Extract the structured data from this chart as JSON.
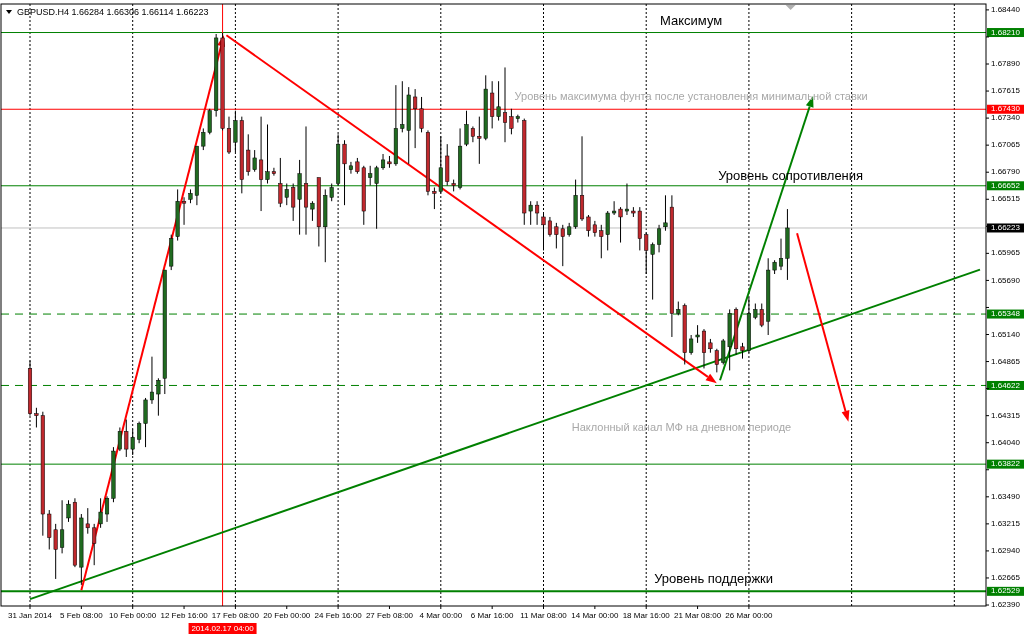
{
  "chart_data": {
    "type": "candlestick",
    "title": "GBPUSD.H4 1.66284 1.66306 1.66114 1.66223",
    "categories": [
      "31 Jan 2014",
      null,
      null,
      null,
      null,
      null,
      null,
      null,
      "5 Feb 08:00",
      null,
      null,
      null,
      null,
      null,
      null,
      null,
      "10 Feb 00:00",
      null,
      null,
      null,
      null,
      null,
      null,
      null,
      "12 Feb 16:00",
      null,
      null,
      null,
      null,
      null,
      null,
      null,
      "17 Feb 08:00",
      null,
      null,
      null,
      null,
      null,
      null,
      null,
      "20 Feb 00:00",
      null,
      null,
      null,
      null,
      null,
      null,
      null,
      "24 Feb 16:00",
      null,
      null,
      null,
      null,
      null,
      null,
      null,
      "27 Feb 08:00",
      null,
      null,
      null,
      null,
      null,
      null,
      null,
      "4 Mar 00:00",
      null,
      null,
      null,
      null,
      null,
      null,
      null,
      "6 Mar 16:00",
      null,
      null,
      null,
      null,
      null,
      null,
      null,
      "11 Mar 08:00",
      null,
      null,
      null,
      null,
      null,
      null,
      null,
      "14 Mar 00:00",
      null,
      null,
      null,
      null,
      null,
      null,
      null,
      "18 Mar 16:00",
      null,
      null,
      null,
      null,
      null,
      null,
      null,
      "21 Mar 08:00",
      null,
      null,
      null,
      null,
      null,
      null,
      null,
      "26 Mar 00:00",
      null,
      null,
      null,
      null,
      null,
      null,
      null,
      null,
      null,
      null,
      null,
      null,
      null,
      null,
      null,
      null,
      null,
      null,
      null,
      null,
      null,
      null,
      null,
      null,
      null,
      null,
      null,
      null,
      null,
      null,
      null,
      null,
      null,
      null,
      null,
      null
    ],
    "ohlc": [
      [
        1.64795,
        1.64875,
        1.64315,
        1.64335
      ],
      [
        1.64335,
        1.64395,
        1.64195,
        1.64315
      ],
      [
        1.64315,
        1.64355,
        1.63095,
        1.63315
      ],
      [
        1.63315,
        1.63355,
        1.62955,
        1.63075
      ],
      [
        1.63155,
        1.63215,
        1.62655,
        1.62955
      ],
      [
        1.62975,
        1.63455,
        1.62915,
        1.63155
      ],
      [
        1.63275,
        1.63455,
        1.63235,
        1.63415
      ],
      [
        1.63435,
        1.63475,
        1.62775,
        1.62795
      ],
      [
        1.62775,
        1.63315,
        1.62595,
        1.63275
      ],
      [
        1.63215,
        1.63375,
        1.63115,
        1.63175
      ],
      [
        1.63175,
        1.63215,
        1.62795,
        1.63015
      ],
      [
        1.63215,
        1.63475,
        1.63175,
        1.63335
      ],
      [
        1.63315,
        1.63495,
        1.63235,
        1.63475
      ],
      [
        1.63475,
        1.63995,
        1.63435,
        1.63955
      ],
      [
        1.63975,
        1.64195,
        1.63955,
        1.64155
      ],
      [
        1.64155,
        1.64275,
        1.63895,
        1.63975
      ],
      [
        1.63975,
        1.64175,
        1.63915,
        1.64095
      ],
      [
        1.64075,
        1.64255,
        1.64035,
        1.64235
      ],
      [
        1.64235,
        1.64495,
        1.63995,
        1.64475
      ],
      [
        1.64475,
        1.64915,
        1.64435,
        1.64555
      ],
      [
        1.64535,
        1.64695,
        1.64315,
        1.64675
      ],
      [
        1.64695,
        1.65795,
        1.64535,
        1.65795
      ],
      [
        1.65835,
        1.66155,
        1.65795,
        1.66115
      ],
      [
        1.66135,
        1.66615,
        1.66095,
        1.66495
      ],
      [
        1.66495,
        1.66535,
        1.66255,
        1.66475
      ],
      [
        1.66515,
        1.66615,
        1.66475,
        1.66575
      ],
      [
        1.66555,
        1.67055,
        1.66455,
        1.67055
      ],
      [
        1.67055,
        1.67235,
        1.67015,
        1.67195
      ],
      [
        1.67195,
        1.67435,
        1.67175,
        1.67415
      ],
      [
        1.67415,
        1.68195,
        1.67355,
        1.68155
      ],
      [
        1.68155,
        1.68205,
        1.67215,
        1.67235
      ],
      [
        1.67235,
        1.67355,
        1.66975,
        1.66995
      ],
      [
        1.67095,
        1.67415,
        1.66995,
        1.67315
      ],
      [
        1.67315,
        1.67355,
        1.66575,
        1.66715
      ],
      [
        1.67015,
        1.67175,
        1.66755,
        1.66795
      ],
      [
        1.66815,
        1.67015,
        1.66795,
        1.66935
      ],
      [
        1.66915,
        1.67355,
        1.66395,
        1.66715
      ],
      [
        1.66715,
        1.67275,
        1.66675,
        1.66795
      ],
      [
        1.66795,
        1.66835,
        1.66755,
        1.66775
      ],
      [
        1.66675,
        1.66935,
        1.66435,
        1.66475
      ],
      [
        1.66535,
        1.66675,
        1.66455,
        1.66615
      ],
      [
        1.66635,
        1.66675,
        1.66295,
        1.66435
      ],
      [
        1.66515,
        1.66915,
        1.66155,
        1.66775
      ],
      [
        1.66675,
        1.67255,
        1.66155,
        1.66435
      ],
      [
        1.66415,
        1.66495,
        1.66295,
        1.66475
      ],
      [
        1.66735,
        1.66735,
        1.66035,
        1.66235
      ],
      [
        1.66235,
        1.66615,
        1.65875,
        1.66555
      ],
      [
        1.66535,
        1.66675,
        1.66495,
        1.66635
      ],
      [
        1.66675,
        1.67175,
        1.66655,
        1.67075
      ],
      [
        1.67075,
        1.67115,
        1.66455,
        1.66875
      ],
      [
        1.66815,
        1.66895,
        1.66775,
        1.66855
      ],
      [
        1.66895,
        1.66935,
        1.66775,
        1.66795
      ],
      [
        1.66835,
        1.66855,
        1.66255,
        1.66395
      ],
      [
        1.66735,
        1.66855,
        1.66655,
        1.66775
      ],
      [
        1.66675,
        1.66855,
        1.66215,
        1.66835
      ],
      [
        1.66835,
        1.66975,
        1.66815,
        1.66915
      ],
      [
        1.66895,
        1.66955,
        1.66835,
        1.66875
      ],
      [
        1.66875,
        1.67675,
        1.66855,
        1.67235
      ],
      [
        1.67235,
        1.67715,
        1.67195,
        1.67275
      ],
      [
        1.67215,
        1.67655,
        1.66875,
        1.67575
      ],
      [
        1.67555,
        1.67635,
        1.67035,
        1.67435
      ],
      [
        1.67435,
        1.67555,
        1.67195,
        1.67235
      ],
      [
        1.67195,
        1.67215,
        1.66555,
        1.66595
      ],
      [
        1.66595,
        1.66635,
        1.66415,
        1.66575
      ],
      [
        1.66595,
        1.67155,
        1.66575,
        1.66835
      ],
      [
        1.66955,
        1.67075,
        1.66655,
        1.66695
      ],
      [
        1.66675,
        1.66715,
        1.66595,
        1.66655
      ],
      [
        1.66635,
        1.67235,
        1.66615,
        1.67055
      ],
      [
        1.67075,
        1.67415,
        1.67055,
        1.67275
      ],
      [
        1.67235,
        1.67255,
        1.67095,
        1.67155
      ],
      [
        1.67155,
        1.67355,
        1.66875,
        1.67135
      ],
      [
        1.67135,
        1.67775,
        1.67115,
        1.67635
      ],
      [
        1.67595,
        1.67715,
        1.67235,
        1.67355
      ],
      [
        1.67355,
        1.67715,
        1.67315,
        1.67455
      ],
      [
        1.67395,
        1.67855,
        1.67095,
        1.67295
      ],
      [
        1.67355,
        1.67435,
        1.67175,
        1.67235
      ],
      [
        1.67335,
        1.67375,
        1.67295,
        1.67355
      ],
      [
        1.67315,
        1.67335,
        1.66255,
        1.66375
      ],
      [
        1.66395,
        1.66495,
        1.66255,
        1.66455
      ],
      [
        1.66455,
        1.66495,
        1.66255,
        1.66375
      ],
      [
        1.66335,
        1.66375,
        1.65995,
        1.66255
      ],
      [
        1.66295,
        1.66335,
        1.66135,
        1.66155
      ],
      [
        1.66235,
        1.66275,
        1.66015,
        1.66155
      ],
      [
        1.66215,
        1.66255,
        1.65835,
        1.66135
      ],
      [
        1.66155,
        1.66275,
        1.66135,
        1.66235
      ],
      [
        1.66235,
        1.66715,
        1.66215,
        1.66555
      ],
      [
        1.66555,
        1.67155,
        1.66295,
        1.66315
      ],
      [
        1.66335,
        1.66355,
        1.66135,
        1.66195
      ],
      [
        1.66255,
        1.66295,
        1.66135,
        1.66175
      ],
      [
        1.66195,
        1.66255,
        1.65915,
        1.66135
      ],
      [
        1.66155,
        1.66395,
        1.65995,
        1.66375
      ],
      [
        1.66375,
        1.66495,
        1.66355,
        1.66395
      ],
      [
        1.66415,
        1.66435,
        1.66075,
        1.66335
      ],
      [
        1.66395,
        1.66675,
        1.66355,
        1.66415
      ],
      [
        1.66395,
        1.66435,
        1.66335,
        1.66375
      ],
      [
        1.66395,
        1.66435,
        1.65995,
        1.66115
      ],
      [
        1.66155,
        1.66175,
        1.65755,
        1.65995
      ],
      [
        1.65955,
        1.66075,
        1.65495,
        1.66055
      ],
      [
        1.66055,
        1.66255,
        1.65975,
        1.66215
      ],
      [
        1.66235,
        1.66555,
        1.66195,
        1.66275
      ],
      [
        1.66435,
        1.66555,
        1.65115,
        1.65355
      ],
      [
        1.65355,
        1.65475,
        1.65335,
        1.65395
      ],
      [
        1.65435,
        1.65455,
        1.64835,
        1.64955
      ],
      [
        1.64955,
        1.65135,
        1.64935,
        1.65095
      ],
      [
        1.65115,
        1.65235,
        1.65055,
        1.65135
      ],
      [
        1.65175,
        1.65195,
        1.64795,
        1.64955
      ],
      [
        1.65055,
        1.65095,
        1.64955,
        1.64995
      ],
      [
        1.64975,
        1.64995,
        1.64755,
        1.64835
      ],
      [
        1.64855,
        1.65095,
        1.64835,
        1.65075
      ],
      [
        1.65015,
        1.65395,
        1.64775,
        1.65355
      ],
      [
        1.65395,
        1.65415,
        1.64935,
        1.64995
      ],
      [
        1.65015,
        1.65055,
        1.64895,
        1.64975
      ],
      [
        1.64975,
        1.65515,
        1.64955,
        1.65355
      ],
      [
        1.65315,
        1.65455,
        1.65295,
        1.65395
      ],
      [
        1.65395,
        1.65455,
        1.65215,
        1.65235
      ],
      [
        1.65275,
        1.65915,
        1.65135,
        1.65795
      ],
      [
        1.65795,
        1.65895,
        1.65755,
        1.65875
      ],
      [
        1.65835,
        1.66115,
        1.65795,
        1.65915
      ],
      [
        1.65915,
        1.66415,
        1.65695,
        1.66223
      ],
      null,
      null,
      null,
      null,
      null,
      null,
      null,
      null,
      null,
      null,
      null,
      null,
      null,
      null,
      null,
      null,
      null,
      null,
      null,
      null,
      null,
      null,
      null,
      null,
      null,
      null,
      null,
      null,
      null,
      null
    ],
    "colors": [
      "#c0282d",
      "#c0282d",
      "#c0282d",
      "#c0282d",
      "#c0282d",
      "#206a20",
      "#206a20",
      "#c0282d",
      "#206a20",
      "#c0282d",
      "#c0282d",
      "#206a20",
      "#206a20",
      "#206a20",
      "#206a20",
      "#c0282d",
      "#206a20",
      "#206a20",
      "#206a20",
      "#206a20",
      "#206a20",
      "#206a20",
      "#206a20",
      "#206a20",
      "#c0282d",
      "#206a20",
      "#206a20",
      "#206a20",
      "#206a20",
      "#206a20",
      "#c0282d",
      "#c0282d",
      "#206a20",
      "#c0282d",
      "#c0282d",
      "#206a20",
      "#c0282d",
      "#206a20",
      "#c0282d",
      "#c0282d",
      "#206a20",
      "#c0282d",
      "#206a20",
      "#c0282d",
      "#206a20",
      "#c0282d",
      "#206a20",
      "#206a20",
      "#206a20",
      "#c0282d",
      "#206a20",
      "#c0282d",
      "#c0282d",
      "#206a20",
      "#206a20",
      "#206a20",
      "#c0282d",
      "#206a20",
      "#206a20",
      "#206a20",
      "#c0282d",
      "#c0282d",
      "#c0282d",
      "#c0282d",
      "#206a20",
      "#c0282d",
      "#c0282d",
      "#206a20",
      "#206a20",
      "#c0282d",
      "#c0282d",
      "#206a20",
      "#c0282d",
      "#206a20",
      "#c0282d",
      "#c0282d",
      "#206a20",
      "#c0282d",
      "#206a20",
      "#c0282d",
      "#c0282d",
      "#c0282d",
      "#c0282d",
      "#c0282d",
      "#206a20",
      "#206a20",
      "#c0282d",
      "#c0282d",
      "#c0282d",
      "#c0282d",
      "#206a20",
      "#206a20",
      "#c0282d",
      "#206a20",
      "#c0282d",
      "#c0282d",
      "#c0282d",
      "#206a20",
      "#206a20",
      "#206a20",
      "#c0282d",
      "#206a20",
      "#c0282d",
      "#206a20",
      "#206a20",
      "#c0282d",
      "#c0282d",
      "#c0282d",
      "#206a20",
      "#206a20",
      "#c0282d",
      "#c0282d",
      "#206a20",
      "#206a20",
      "#c0282d",
      "#206a20",
      "#206a20",
      "#206a20",
      "#206a20",
      null,
      null,
      null,
      null,
      null,
      null,
      null,
      null,
      null,
      null,
      null,
      null,
      null,
      null,
      null,
      null,
      null,
      null,
      null,
      null,
      null,
      null,
      null,
      null,
      null,
      null,
      null,
      null,
      null,
      null
    ],
    "series": [
      {
        "type": "line",
        "color": "#008000",
        "values": [
          1.6245,
          null,
          null,
          null,
          null,
          null,
          null,
          null,
          null,
          null,
          null,
          null,
          null,
          null,
          null,
          null,
          null,
          null,
          null,
          null,
          null,
          null,
          null,
          null,
          null,
          null,
          null,
          null,
          null,
          null,
          null,
          null,
          null,
          null,
          null,
          null,
          null,
          null,
          null,
          null,
          null,
          null,
          null,
          null,
          null,
          null,
          null,
          null,
          null,
          null,
          null,
          null,
          null,
          null,
          null,
          null,
          null,
          null,
          null,
          null,
          null,
          null,
          null,
          null,
          null,
          null,
          null,
          null,
          null,
          null,
          null,
          null,
          null,
          null,
          null,
          null,
          null,
          null,
          null,
          null,
          null,
          null,
          null,
          null,
          null,
          null,
          null,
          null,
          null,
          null,
          null,
          null,
          null,
          null,
          null,
          null,
          null,
          null,
          null,
          null,
          null,
          null,
          null,
          null,
          null,
          null,
          null,
          null,
          null,
          null,
          null,
          null,
          null,
          null,
          null,
          null,
          null,
          null,
          null,
          null,
          null,
          null,
          null,
          null,
          null,
          null,
          null,
          null,
          null,
          null,
          null,
          null,
          null,
          null,
          null,
          null,
          null,
          null,
          null,
          null,
          null,
          null,
          null,
          null,
          null,
          null,
          null,
          null,
          1.658
        ]
      }
    ],
    "ylim": [
      1.6238,
      1.685
    ],
    "yticks": [
      {
        "value": 1.6844,
        "label": "1.68440"
      },
      {
        "value": 1.6821,
        "label": "1.68210"
      },
      {
        "value": 1.68165,
        "label": null
      },
      {
        "value": 1.6789,
        "label": "1.67890"
      },
      {
        "value": 1.67615,
        "label": "1.67615"
      },
      {
        "value": 1.6743,
        "label": "1.67430"
      },
      {
        "value": 1.6734,
        "label": "1.67340"
      },
      {
        "value": 1.67065,
        "label": "1.67065"
      },
      {
        "value": 1.6679,
        "label": "1.66790"
      },
      {
        "value": 1.66652,
        "label": "1.66652"
      },
      {
        "value": 1.66515,
        "label": "1.66515"
      },
      {
        "value": 1.6624,
        "label": null
      },
      {
        "value": 1.66223,
        "label": "1.66223"
      },
      {
        "value": 1.65965,
        "label": "1.65965"
      },
      {
        "value": 1.6569,
        "label": "1.65690"
      },
      {
        "value": 1.65415,
        "label": null
      },
      {
        "value": 1.65348,
        "label": "1.65348"
      },
      {
        "value": 1.6514,
        "label": "1.65140"
      },
      {
        "value": 1.64865,
        "label": "1.64865"
      },
      {
        "value": 1.64622,
        "label": "1.64622"
      },
      {
        "value": 1.6459,
        "label": null
      },
      {
        "value": 1.64315,
        "label": "1.64315"
      },
      {
        "value": 1.6404,
        "label": "1.64040"
      },
      {
        "value": 1.63822,
        "label": "1.63822"
      },
      {
        "value": 1.63765,
        "label": null
      },
      {
        "value": 1.6349,
        "label": "1.63490"
      },
      {
        "value": 1.63215,
        "label": "1.63215"
      },
      {
        "value": 1.6294,
        "label": "1.62940"
      },
      {
        "value": 1.62665,
        "label": "1.62665"
      },
      {
        "value": 1.62529,
        "label": "1.62529"
      },
      {
        "value": 1.6239,
        "label": "1.62390"
      }
    ],
    "grid": "x",
    "ref_lines": [
      {
        "axis": "y",
        "value": 1.6821,
        "label": "Максимум",
        "color": "#008000"
      },
      {
        "axis": "y",
        "value": 1.6743,
        "label": "Уровень максимума фунта после установления минимальной ставки",
        "color": "#ff0000"
      },
      {
        "axis": "y",
        "value": 1.66652,
        "label": "Уровень сопротивления",
        "color": "#008000"
      },
      {
        "axis": "y",
        "value": 1.66223,
        "color": "#c0c0c0"
      },
      {
        "axis": "y",
        "value": 1.65348,
        "color": "#008000",
        "line_style": "dashed"
      },
      {
        "axis": "y",
        "value": 1.64622,
        "color": "#008000",
        "line_style": "dashed"
      },
      {
        "axis": "y",
        "value": 1.63822,
        "color": "#008000"
      },
      {
        "axis": "y",
        "value": 1.62529,
        "label": "Уровень поддержки",
        "color": "#008000"
      }
    ],
    "annotations": [
      "Наклонный канал МФ на дневном периоде",
      "2014.02.17 04:00"
    ]
  }
}
